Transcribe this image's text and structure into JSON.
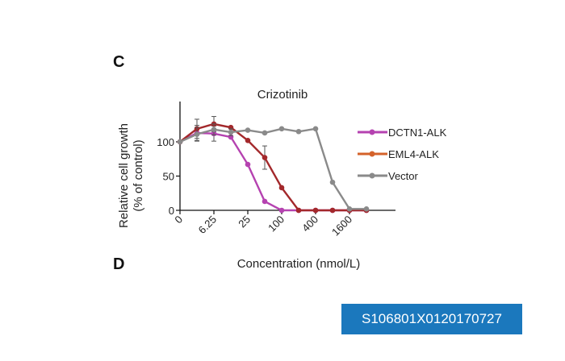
{
  "panels": {
    "c": "C",
    "d": "D"
  },
  "id_label": "S106801X0120170727",
  "chart_data": {
    "type": "line",
    "title": "Crizotinib",
    "xlabel": "Concentration (nmol/L)",
    "ylabel": "Relative cell growth\n(% of control)",
    "ylabel_lines": [
      "Relative cell growth",
      "(% of control)"
    ],
    "x": [
      0,
      3.125,
      6.25,
      12.5,
      25,
      50,
      100,
      200,
      400,
      800,
      1600,
      3200
    ],
    "x_tick_labels": [
      "0",
      "6.25",
      "25",
      "100",
      "400",
      "1600"
    ],
    "x_tick_values": [
      0,
      6.25,
      25,
      100,
      400,
      1600
    ],
    "y_ticks": [
      0,
      50,
      100
    ],
    "ylim": [
      0,
      140
    ],
    "grid": false,
    "legend_placement": "right",
    "series": [
      {
        "name": "DCTN1-ALK",
        "color": "#b542b0",
        "legend_color": "#b542b0",
        "values": [
          100,
          113,
          112,
          107,
          67,
          13,
          0,
          0,
          0,
          0,
          0,
          0
        ],
        "errors": [
          0,
          11,
          11,
          0,
          0,
          0,
          0,
          0,
          0,
          0,
          0,
          0
        ]
      },
      {
        "name": "EML4-ALK",
        "color": "#a3282b",
        "legend_color": "#d4622a",
        "values": [
          100,
          119,
          126,
          121,
          102,
          77,
          33,
          0,
          0,
          0,
          0,
          0
        ],
        "errors": [
          0,
          14,
          11,
          0,
          0,
          17,
          0,
          0,
          0,
          0,
          0,
          0
        ]
      },
      {
        "name": "Vector",
        "color": "#8a8a8a",
        "legend_color": "#8a8a8a",
        "values": [
          100,
          111,
          118,
          114,
          117,
          113,
          119,
          115,
          119,
          41,
          2,
          2
        ],
        "errors": [
          0,
          10,
          8,
          5,
          0,
          0,
          0,
          0,
          0,
          0,
          0,
          0
        ]
      }
    ]
  }
}
